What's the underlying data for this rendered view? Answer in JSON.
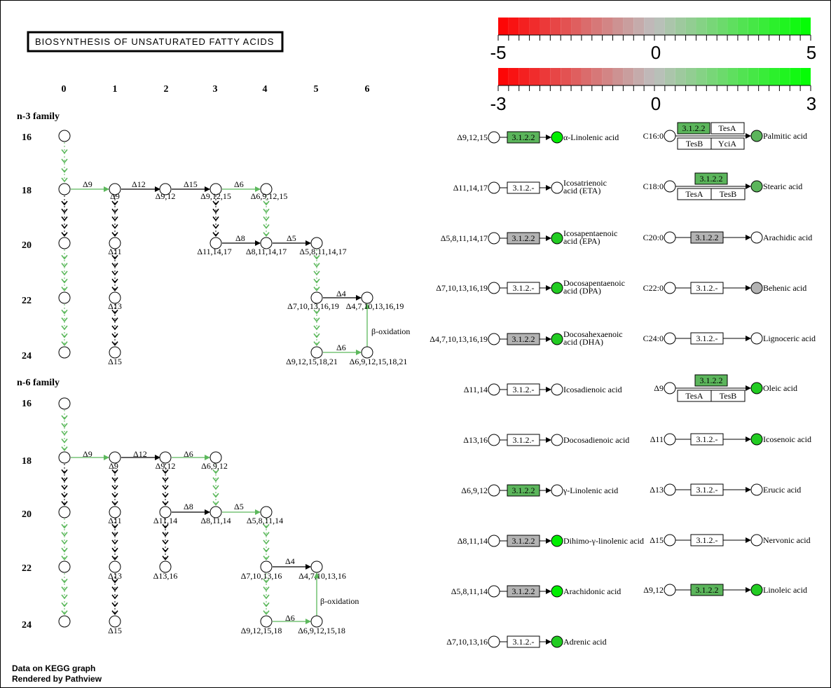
{
  "title": "BIOSYNTHESIS OF UNSATURATED FATTY ACIDS",
  "colors": {
    "up": "#00ff00",
    "down": "#ff0000",
    "neutral": "#bebebe",
    "node_green": "#5bb55b",
    "node_bright": "#00dd00",
    "node_gray": "#b3b3b3",
    "green_edge": "#5cb85c"
  },
  "legend": {
    "scale1": {
      "min": "-5",
      "mid": "0",
      "max": "5"
    },
    "scale2": {
      "min": "-3",
      "mid": "0",
      "max": "3"
    }
  },
  "columns": [
    "0",
    "1",
    "2",
    "3",
    "4",
    "5",
    "6"
  ],
  "rows_top": [
    "16",
    "18",
    "20",
    "22",
    "24"
  ],
  "rows_bottom": [
    "16",
    "18",
    "20",
    "22",
    "24"
  ],
  "families": {
    "n3": "n-3 family",
    "n6": "n-6 family"
  },
  "n3": {
    "edges": {
      "d9": "Δ9",
      "d12": "Δ12",
      "d15": "Δ15",
      "d6": "Δ6",
      "d8": "Δ8",
      "d5": "Δ5",
      "d4": "Δ4",
      "d6b": "Δ6",
      "beta": "β-oxidation"
    },
    "nodes": {
      "n9": "Δ9",
      "n912": "Δ9,12",
      "n91215": "Δ9,12,15",
      "n691215": "Δ6,9,12,15",
      "n111417": "Δ11,14,17",
      "n8111417": "Δ8,11,14,17",
      "n58111417": "Δ5,8,11,14,17",
      "n710131619": "Δ7,10,13,16,19",
      "n4710131619": "Δ4,7,10,13,16,19",
      "n91215182": "Δ9,12,15,18,21",
      "n6912151821": "Δ6,9,12,15,18,21",
      "n11": "Δ11",
      "n13": "Δ13",
      "n15": "Δ15"
    }
  },
  "n6": {
    "edges": {
      "d9": "Δ9",
      "d12": "Δ12",
      "d6": "Δ6",
      "d8": "Δ8",
      "d5": "Δ5",
      "d4": "Δ4",
      "d6b": "Δ6",
      "beta": "β-oxidation"
    },
    "nodes": {
      "n9": "Δ9",
      "n912": "Δ9,12",
      "n6912": "Δ6,9,12",
      "n1114": "Δ11,14",
      "n81114": "Δ8,11,14",
      "n581114": "Δ5,8,11,14",
      "n7101316": "Δ7,10,13,16",
      "n47101316": "Δ4,7,10,13,16",
      "n9121518": "Δ9,12,15,18",
      "n69121518": "Δ6,9,12,15,18",
      "n1316": "Δ13,16",
      "n11": "Δ11",
      "n13": "Δ13",
      "n15": "Δ15"
    }
  },
  "left_reactions": [
    {
      "sub": "Δ9,12,15",
      "enzyme": "3.1.2.2",
      "product": "α-Linolenic acid",
      "product2": ""
    },
    {
      "sub": "Δ11,14,17",
      "enzyme": "3.1.2.-",
      "product": "Icosatrienoic",
      "product2": "acid (ETA)"
    },
    {
      "sub": "Δ5,8,11,14,17",
      "enzyme": "3.1.2.2",
      "product": "Icosapentaenoic",
      "product2": "acid (EPA)"
    },
    {
      "sub": "Δ7,10,13,16,19",
      "enzyme": "3.1.2.-",
      "product": "Docosapentaenoic",
      "product2": "acid (DPA)"
    },
    {
      "sub": "Δ4,7,10,13,16,19",
      "enzyme": "3.1.2.2",
      "product": "Docosahexaenoic",
      "product2": "acid (DHA)"
    },
    {
      "sub": "Δ11,14",
      "enzyme": "3.1.2.-",
      "product": "Icosadienoic acid",
      "product2": ""
    },
    {
      "sub": "Δ13,16",
      "enzyme": "3.1.2.-",
      "product": "Docosadienoic acid",
      "product2": ""
    },
    {
      "sub": "Δ6,9,12",
      "enzyme": "3.1.2.2",
      "product": "γ-Linolenic acid",
      "product2": ""
    },
    {
      "sub": "Δ8,11,14",
      "enzyme": "3.1.2.2",
      "product": "Dihimo-γ-linolenic acid",
      "product2": ""
    },
    {
      "sub": "Δ5,8,11,14",
      "enzyme": "3.1.2.2",
      "product": "Arachidonic acid",
      "product2": ""
    },
    {
      "sub": "Δ7,10,13,16",
      "enzyme": "3.1.2.-",
      "product": "Adrenic acid",
      "product2": ""
    }
  ],
  "right_reactions": [
    {
      "sub": "C16:0",
      "enzyme": "3.1.2.2",
      "gene1": "TesA",
      "gene2": "TesB",
      "gene3": "YciA",
      "product": "Palmitic acid"
    },
    {
      "sub": "C18:0",
      "enzyme": "3.1.2.2",
      "gene1": "TesA",
      "gene2": "TesB",
      "product": "Stearic acid"
    },
    {
      "sub": "C20:0",
      "enzyme": "3.1.2.2",
      "product": "Arachidic acid"
    },
    {
      "sub": "C22:0",
      "enzyme": "3.1.2.-",
      "product": "Behenic acid"
    },
    {
      "sub": "C24:0",
      "enzyme": "3.1.2.-",
      "product": "Lignoceric acid"
    },
    {
      "sub": "Δ9",
      "enzyme": "3.1.2.2",
      "gene1": "TesA",
      "gene2": "TesB",
      "product": "Oleic acid"
    },
    {
      "sub": "Δ11",
      "enzyme": "3.1.2.-",
      "product": "Icosenoic acid"
    },
    {
      "sub": "Δ13",
      "enzyme": "3.1.2.-",
      "product": "Erucic acid"
    },
    {
      "sub": "Δ15",
      "enzyme": "3.1.2.-",
      "product": "Nervonic acid"
    },
    {
      "sub": "Δ9,12",
      "enzyme": "3.1.2.2",
      "product": "Linoleic acid"
    }
  ],
  "footer": {
    "line1": "Data on KEGG graph",
    "line2": "Rendered by Pathview"
  }
}
